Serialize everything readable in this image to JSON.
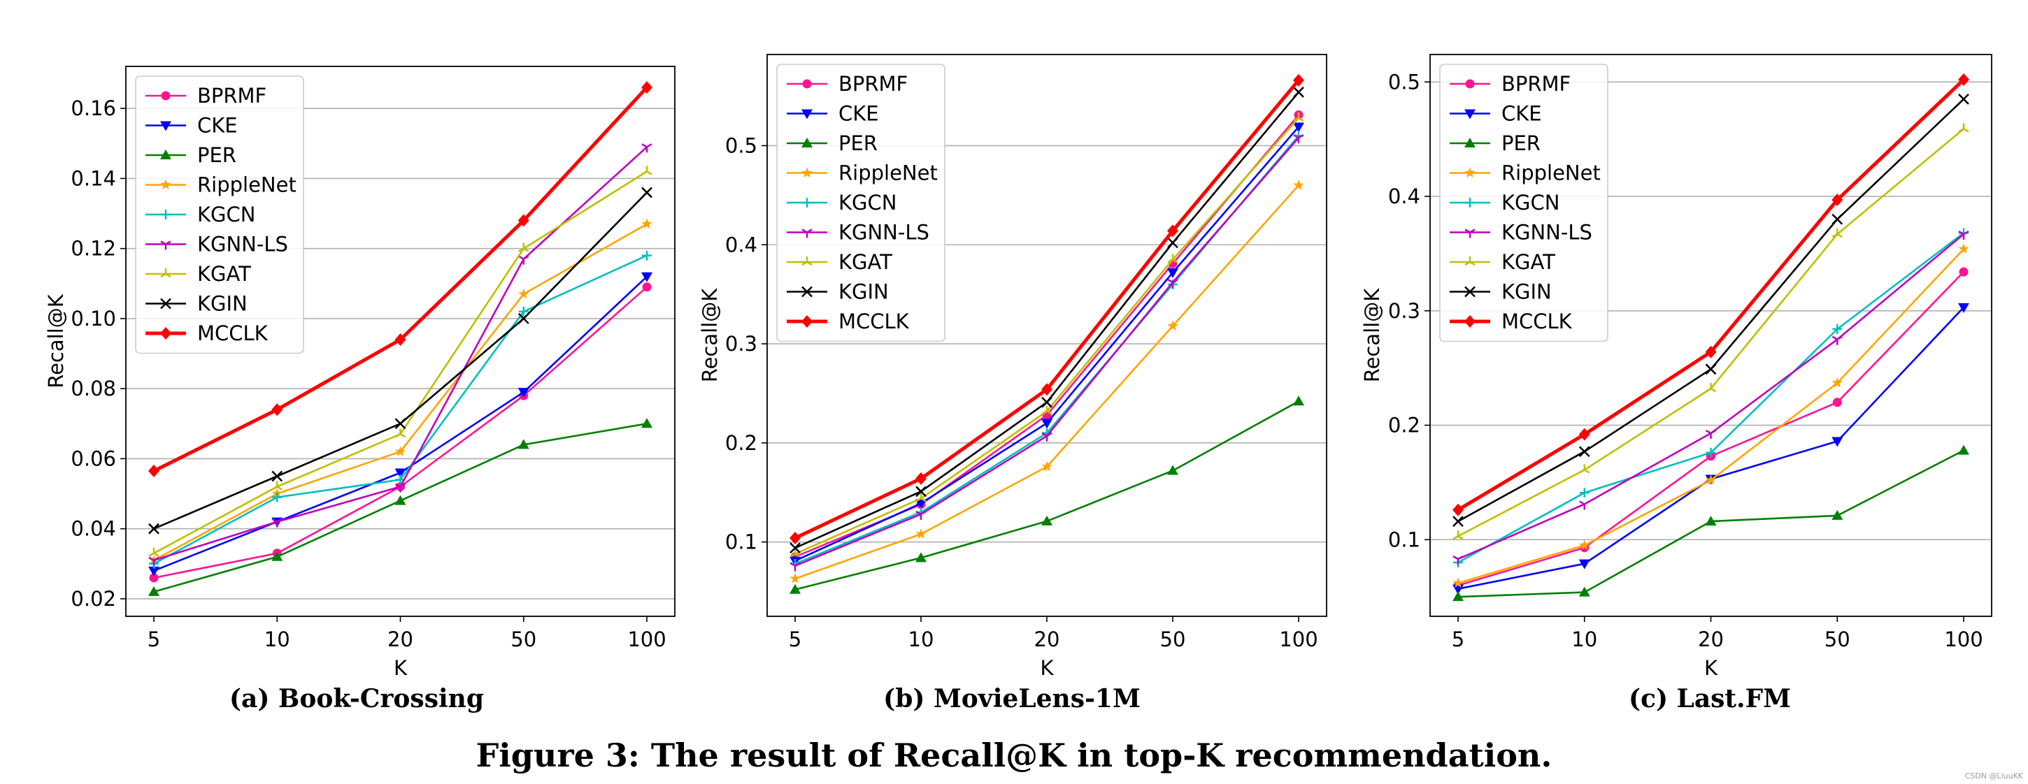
{
  "caption": "Figure 3: The result of Recall@K in top-K recommendation.",
  "watermark": "CSDN @LiuuKK",
  "colors": {
    "BPRMF": "#ff1493",
    "CKE": "#0000ff",
    "PER": "#008000",
    "RippleNet": "#ffa500",
    "KGCN": "#00bfbf",
    "KGNN-LS": "#bf00bf",
    "KGAT": "#bfbf00",
    "KGIN": "#000000",
    "MCCLK": "#ff0000"
  },
  "markers": {
    "BPRMF": "circle",
    "CKE": "triangle-down",
    "PER": "triangle-up",
    "RippleNet": "star",
    "KGCN": "plus",
    "KGNN-LS": "tri",
    "KGAT": "tri-up",
    "KGIN": "x",
    "MCCLK": "diamond"
  },
  "chart_data": [
    {
      "type": "line",
      "subcaption": "(a) Book-Crossing",
      "xlabel": "K",
      "ylabel": "Recall@K",
      "categories": [
        "5",
        "10",
        "20",
        "50",
        "100"
      ],
      "ylim": [
        0.015,
        0.172
      ],
      "yticks": [
        0.02,
        0.04,
        0.06,
        0.08,
        0.1,
        0.12,
        0.14,
        0.16
      ],
      "ytick_labels": [
        "0.02",
        "0.04",
        "0.06",
        "0.08",
        "0.10",
        "0.12",
        "0.14",
        "0.16"
      ],
      "legend": "top-left",
      "grid": true,
      "series": [
        {
          "name": "BPRMF",
          "values": [
            0.026,
            0.033,
            0.052,
            0.078,
            0.109
          ]
        },
        {
          "name": "CKE",
          "values": [
            0.028,
            0.042,
            0.056,
            0.079,
            0.112
          ]
        },
        {
          "name": "PER",
          "values": [
            0.022,
            0.032,
            0.048,
            0.064,
            0.07
          ]
        },
        {
          "name": "RippleNet",
          "values": [
            0.031,
            0.05,
            0.062,
            0.107,
            0.127
          ]
        },
        {
          "name": "KGCN",
          "values": [
            0.03,
            0.049,
            0.054,
            0.102,
            0.118
          ]
        },
        {
          "name": "KGNN-LS",
          "values": [
            0.031,
            0.042,
            0.052,
            0.117,
            0.149
          ]
        },
        {
          "name": "KGAT",
          "values": [
            0.033,
            0.052,
            0.067,
            0.12,
            0.142
          ]
        },
        {
          "name": "KGIN",
          "values": [
            0.04,
            0.055,
            0.07,
            0.1,
            0.136
          ]
        },
        {
          "name": "MCCLK",
          "values": [
            0.0565,
            0.074,
            0.094,
            0.128,
            0.166
          ]
        }
      ]
    },
    {
      "type": "line",
      "subcaption": "(b) MovieLens-1M",
      "xlabel": "K",
      "ylabel": "Recall@K",
      "categories": [
        "5",
        "10",
        "20",
        "50",
        "100"
      ],
      "ylim": [
        0.025,
        0.592
      ],
      "yticks": [
        0.1,
        0.2,
        0.3,
        0.4,
        0.5
      ],
      "ytick_labels": [
        "0.1",
        "0.2",
        "0.3",
        "0.4",
        "0.5"
      ],
      "legend": "top-left",
      "grid": true,
      "series": [
        {
          "name": "BPRMF",
          "values": [
            0.085,
            0.138,
            0.228,
            0.381,
            0.531
          ]
        },
        {
          "name": "CKE",
          "values": [
            0.081,
            0.139,
            0.22,
            0.372,
            0.519
          ]
        },
        {
          "name": "PER",
          "values": [
            0.052,
            0.084,
            0.121,
            0.172,
            0.242
          ]
        },
        {
          "name": "RippleNet",
          "values": [
            0.063,
            0.108,
            0.176,
            0.318,
            0.46
          ]
        },
        {
          "name": "KGCN",
          "values": [
            0.078,
            0.13,
            0.21,
            0.36,
            0.51
          ]
        },
        {
          "name": "KGNN-LS",
          "values": [
            0.076,
            0.128,
            0.207,
            0.362,
            0.508
          ]
        },
        {
          "name": "KGAT",
          "values": [
            0.088,
            0.144,
            0.232,
            0.385,
            0.528
          ]
        },
        {
          "name": "KGIN",
          "values": [
            0.094,
            0.151,
            0.241,
            0.402,
            0.554
          ]
        },
        {
          "name": "MCCLK",
          "values": [
            0.104,
            0.164,
            0.254,
            0.414,
            0.566
          ]
        }
      ]
    },
    {
      "type": "line",
      "subcaption": "(c) Last.FM",
      "xlabel": "K",
      "ylabel": "Recall@K",
      "categories": [
        "5",
        "10",
        "20",
        "50",
        "100"
      ],
      "ylim": [
        0.033,
        0.524
      ],
      "yticks": [
        0.1,
        0.2,
        0.3,
        0.4,
        0.5
      ],
      "ytick_labels": [
        "0.1",
        "0.2",
        "0.3",
        "0.4",
        "0.5"
      ],
      "legend": "top-left",
      "grid": true,
      "series": [
        {
          "name": "BPRMF",
          "values": [
            0.06,
            0.093,
            0.173,
            0.22,
            0.334
          ]
        },
        {
          "name": "CKE",
          "values": [
            0.057,
            0.079,
            0.153,
            0.186,
            0.303
          ]
        },
        {
          "name": "PER",
          "values": [
            0.05,
            0.054,
            0.116,
            0.121,
            0.178
          ]
        },
        {
          "name": "RippleNet",
          "values": [
            0.062,
            0.095,
            0.152,
            0.237,
            0.354
          ]
        },
        {
          "name": "KGCN",
          "values": [
            0.08,
            0.141,
            0.176,
            0.284,
            0.368
          ]
        },
        {
          "name": "KGNN-LS",
          "values": [
            0.083,
            0.131,
            0.193,
            0.275,
            0.367
          ]
        },
        {
          "name": "KGAT",
          "values": [
            0.103,
            0.161,
            0.232,
            0.367,
            0.459
          ]
        },
        {
          "name": "KGIN",
          "values": [
            0.116,
            0.177,
            0.249,
            0.38,
            0.485
          ]
        },
        {
          "name": "MCCLK",
          "values": [
            0.126,
            0.192,
            0.264,
            0.397,
            0.502
          ]
        }
      ]
    }
  ]
}
